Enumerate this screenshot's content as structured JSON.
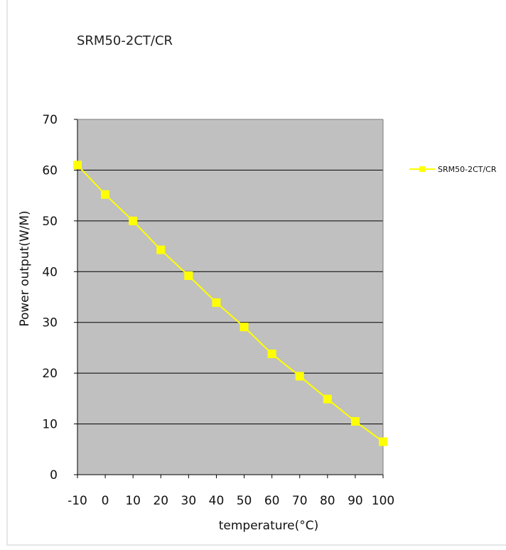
{
  "chart_data": {
    "type": "line",
    "title": "SRM50-2CT/CR",
    "xlabel": "temperature(°C)",
    "ylabel": "Power output(W/M)",
    "categories": [
      "-10",
      "0",
      "10",
      "20",
      "30",
      "40",
      "50",
      "60",
      "70",
      "80",
      "90",
      "100"
    ],
    "series": [
      {
        "name": "SRM50-2CT/CR",
        "values": [
          61,
          55.2,
          50,
          44.3,
          39.2,
          33.9,
          29.1,
          23.8,
          19.4,
          14.9,
          10.5,
          6.5
        ]
      }
    ],
    "y_ticks": [
      "0",
      "10",
      "20",
      "30",
      "40",
      "50",
      "60",
      "70"
    ],
    "ylim": [
      0,
      70
    ],
    "grid": true,
    "legend_position": "right",
    "colors": {
      "plot_background": "#c0c0c0",
      "series": "#ffff00",
      "gridline": "#000000"
    }
  }
}
